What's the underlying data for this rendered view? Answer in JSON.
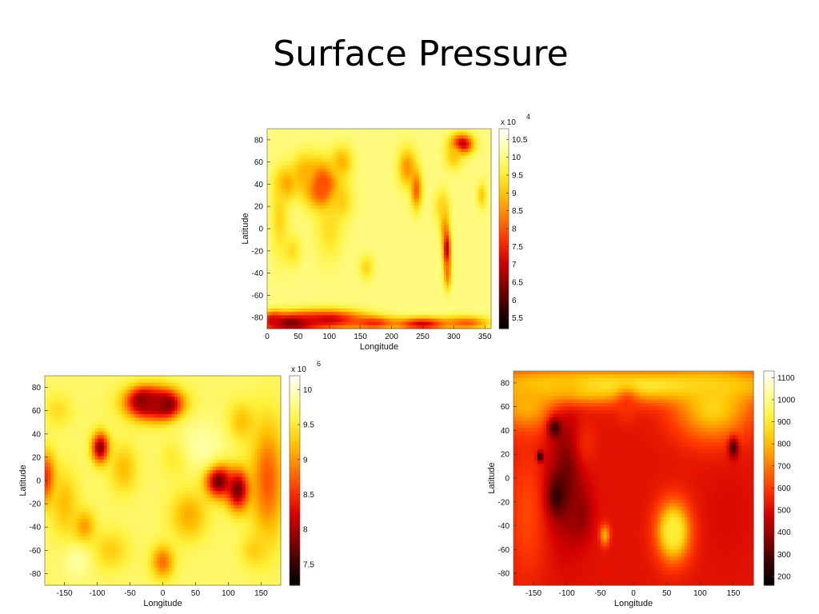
{
  "slide": {
    "title": "Surface Pressure"
  },
  "colors": {
    "colormap": "hot",
    "colormap_stops": [
      "#000000",
      "#3a0000",
      "#8b0000",
      "#d40000",
      "#ff3300",
      "#ff7a00",
      "#ffc000",
      "#fff03a",
      "#ffff9a",
      "#ffffff"
    ],
    "axis": "#111111",
    "background": "#ffffff"
  },
  "chart_data": [
    {
      "id": "top",
      "type": "heatmap",
      "xlabel": "Longitude",
      "ylabel": "Latitude",
      "xlim": [
        0,
        360
      ],
      "ylim": [
        -90,
        90
      ],
      "xticks": [
        0,
        50,
        100,
        150,
        200,
        250,
        300,
        350
      ],
      "yticks": [
        80,
        60,
        40,
        20,
        0,
        -20,
        -40,
        -60,
        -80
      ],
      "colorbar": {
        "multiplier": "x 10",
        "exponent": "4",
        "range": [
          5.2,
          10.8
        ],
        "ticks": [
          "10.5",
          "10",
          "9.5",
          "9",
          "8.5",
          "8",
          "7.5",
          "7",
          "6.5",
          "6",
          "5.5"
        ]
      },
      "background_value": 10.0,
      "features": [
        {
          "lon": 95,
          "lat": 33,
          "value": 5.2,
          "sx": 10,
          "sy": 8
        },
        {
          "lon": 85,
          "lat": 40,
          "value": 7.5,
          "sx": 18,
          "sy": 14
        },
        {
          "lon": 30,
          "lat": 40,
          "value": 8.5,
          "sx": 12,
          "sy": 10
        },
        {
          "lon": 60,
          "lat": 50,
          "value": 8.8,
          "sx": 15,
          "sy": 12
        },
        {
          "lon": 115,
          "lat": 25,
          "value": 9.0,
          "sx": 15,
          "sy": 12
        },
        {
          "lon": 120,
          "lat": 60,
          "value": 8.8,
          "sx": 12,
          "sy": 10
        },
        {
          "lon": 313,
          "lat": 76,
          "value": 6.5,
          "sx": 12,
          "sy": 6
        },
        {
          "lon": 300,
          "lat": 65,
          "value": 9.0,
          "sx": 10,
          "sy": 8
        },
        {
          "lon": 225,
          "lat": 55,
          "value": 8.5,
          "sx": 10,
          "sy": 12
        },
        {
          "lon": 240,
          "lat": 35,
          "value": 8.0,
          "sx": 6,
          "sy": 12
        },
        {
          "lon": 285,
          "lat": 5,
          "value": 8.5,
          "sx": 5,
          "sy": 14
        },
        {
          "lon": 289,
          "lat": -20,
          "value": 6.5,
          "sx": 4,
          "sy": 12
        },
        {
          "lon": 290,
          "lat": -40,
          "value": 8.2,
          "sx": 4,
          "sy": 10
        },
        {
          "lon": 280,
          "lat": 20,
          "value": 9.2,
          "sx": 8,
          "sy": 10
        },
        {
          "lon": 20,
          "lat": 10,
          "value": 9.2,
          "sx": 10,
          "sy": 25
        },
        {
          "lon": 40,
          "lat": -20,
          "value": 9.3,
          "sx": 10,
          "sy": 10
        },
        {
          "lon": 100,
          "lat": 0,
          "value": 9.3,
          "sx": 15,
          "sy": 20
        },
        {
          "lon": 160,
          "lat": -35,
          "value": 9.2,
          "sx": 8,
          "sy": 8
        },
        {
          "lon": 345,
          "lat": 30,
          "value": 9.0,
          "sx": 5,
          "sy": 8
        },
        {
          "lon": 40,
          "lat": -85,
          "value": 6.0,
          "sx": 35,
          "sy": 6
        },
        {
          "lon": 100,
          "lat": -82,
          "value": 7.0,
          "sx": 40,
          "sy": 6
        },
        {
          "lon": 170,
          "lat": -85,
          "value": 7.5,
          "sx": 25,
          "sy": 4
        },
        {
          "lon": 250,
          "lat": -86,
          "value": 7.0,
          "sx": 30,
          "sy": 4
        },
        {
          "lon": 320,
          "lat": -85,
          "value": 8.0,
          "sx": 25,
          "sy": 4
        },
        {
          "lon": 10,
          "lat": -83,
          "value": 7.0,
          "sx": 10,
          "sy": 5
        }
      ]
    },
    {
      "id": "bottom-left",
      "type": "heatmap",
      "xlabel": "Longitude",
      "ylabel": "Latitude",
      "xlim": [
        -180,
        180
      ],
      "ylim": [
        -90,
        90
      ],
      "xticks": [
        -150,
        -100,
        -50,
        0,
        50,
        100,
        150
      ],
      "yticks": [
        80,
        60,
        40,
        20,
        0,
        -20,
        -40,
        -60,
        -80
      ],
      "colorbar": {
        "multiplier": "x 10",
        "exponent": "6",
        "range": [
          7.2,
          10.2
        ],
        "ticks": [
          "10",
          "9.5",
          "9",
          "8.5",
          "8",
          "7.5"
        ]
      },
      "background_value": 9.7,
      "features": [
        {
          "lon": -30,
          "lat": 68,
          "value": 7.4,
          "sx": 14,
          "sy": 7
        },
        {
          "lon": 5,
          "lat": 65,
          "value": 7.3,
          "sx": 14,
          "sy": 7
        },
        {
          "lon": -15,
          "lat": 66,
          "value": 8.0,
          "sx": 28,
          "sy": 10
        },
        {
          "lon": -95,
          "lat": 28,
          "value": 7.8,
          "sx": 9,
          "sy": 9
        },
        {
          "lon": 85,
          "lat": 0,
          "value": 7.5,
          "sx": 14,
          "sy": 10
        },
        {
          "lon": 115,
          "lat": -8,
          "value": 7.7,
          "sx": 12,
          "sy": 12
        },
        {
          "lon": 160,
          "lat": 0,
          "value": 8.7,
          "sx": 18,
          "sy": 35
        },
        {
          "lon": -178,
          "lat": 2,
          "value": 8.4,
          "sx": 10,
          "sy": 15
        },
        {
          "lon": 0,
          "lat": -70,
          "value": 8.8,
          "sx": 12,
          "sy": 10
        },
        {
          "lon": -120,
          "lat": -40,
          "value": 9.0,
          "sx": 12,
          "sy": 10
        },
        {
          "lon": -150,
          "lat": -20,
          "value": 9.2,
          "sx": 15,
          "sy": 20
        },
        {
          "lon": -60,
          "lat": 10,
          "value": 9.2,
          "sx": 15,
          "sy": 15
        },
        {
          "lon": 40,
          "lat": -30,
          "value": 9.1,
          "sx": 20,
          "sy": 15
        },
        {
          "lon": 120,
          "lat": 50,
          "value": 9.2,
          "sx": 15,
          "sy": 12
        },
        {
          "lon": -80,
          "lat": -60,
          "value": 9.3,
          "sx": 20,
          "sy": 12
        },
        {
          "lon": 140,
          "lat": -60,
          "value": 9.3,
          "sx": 15,
          "sy": 10
        },
        {
          "lon": 20,
          "lat": 20,
          "value": 9.4,
          "sx": 15,
          "sy": 12
        },
        {
          "lon": -160,
          "lat": 60,
          "value": 9.4,
          "sx": 15,
          "sy": 10
        },
        {
          "lon": 60,
          "lat": 30,
          "value": 9.9,
          "sx": 25,
          "sy": 15
        },
        {
          "lon": -130,
          "lat": -70,
          "value": 9.9,
          "sx": 15,
          "sy": 10
        }
      ]
    },
    {
      "id": "bottom-right",
      "type": "heatmap",
      "xlabel": "Longitude",
      "ylabel": "Latitude",
      "xlim": [
        -180,
        180
      ],
      "ylim": [
        -90,
        90
      ],
      "xticks": [
        -150,
        -100,
        -50,
        0,
        50,
        100,
        150
      ],
      "yticks": [
        80,
        60,
        40,
        20,
        0,
        -20,
        -40,
        -60,
        -80
      ],
      "colorbar": {
        "multiplier": "",
        "exponent": "",
        "range": [
          160,
          1130
        ],
        "ticks": [
          "1100",
          "1000",
          "900",
          "800",
          "700",
          "600",
          "500",
          "400",
          "300",
          "200"
        ]
      },
      "background_value": 520,
      "features": [
        {
          "lon": 0,
          "lat": 78,
          "value": 900,
          "sx": 200,
          "sy": 10
        },
        {
          "lon": -100,
          "lat": 75,
          "value": 850,
          "sx": 40,
          "sy": 8
        },
        {
          "lon": 120,
          "lat": 60,
          "value": 850,
          "sx": 40,
          "sy": 20
        },
        {
          "lon": -160,
          "lat": 60,
          "value": 800,
          "sx": 30,
          "sy": 15
        },
        {
          "lon": 60,
          "lat": -45,
          "value": 1100,
          "sx": 10,
          "sy": 10
        },
        {
          "lon": 60,
          "lat": -45,
          "value": 900,
          "sx": 18,
          "sy": 18
        },
        {
          "lon": -43,
          "lat": -48,
          "value": 800,
          "sx": 5,
          "sy": 6
        },
        {
          "lon": -160,
          "lat": -30,
          "value": 620,
          "sx": 20,
          "sy": 40
        },
        {
          "lon": -100,
          "lat": 0,
          "value": 340,
          "sx": 18,
          "sy": 35
        },
        {
          "lon": -118,
          "lat": 42,
          "value": 260,
          "sx": 7,
          "sy": 6
        },
        {
          "lon": -140,
          "lat": 18,
          "value": 170,
          "sx": 3,
          "sy": 3
        },
        {
          "lon": -115,
          "lat": -15,
          "value": 260,
          "sx": 10,
          "sy": 12
        },
        {
          "lon": -80,
          "lat": -30,
          "value": 380,
          "sx": 12,
          "sy": 15
        },
        {
          "lon": 150,
          "lat": 25,
          "value": 260,
          "sx": 5,
          "sy": 6
        },
        {
          "lon": -70,
          "lat": 30,
          "value": 560,
          "sx": 12,
          "sy": 15
        },
        {
          "lon": -10,
          "lat": 60,
          "value": 580,
          "sx": 12,
          "sy": 10
        },
        {
          "lon": 140,
          "lat": -30,
          "value": 500,
          "sx": 20,
          "sy": 25
        }
      ]
    }
  ]
}
